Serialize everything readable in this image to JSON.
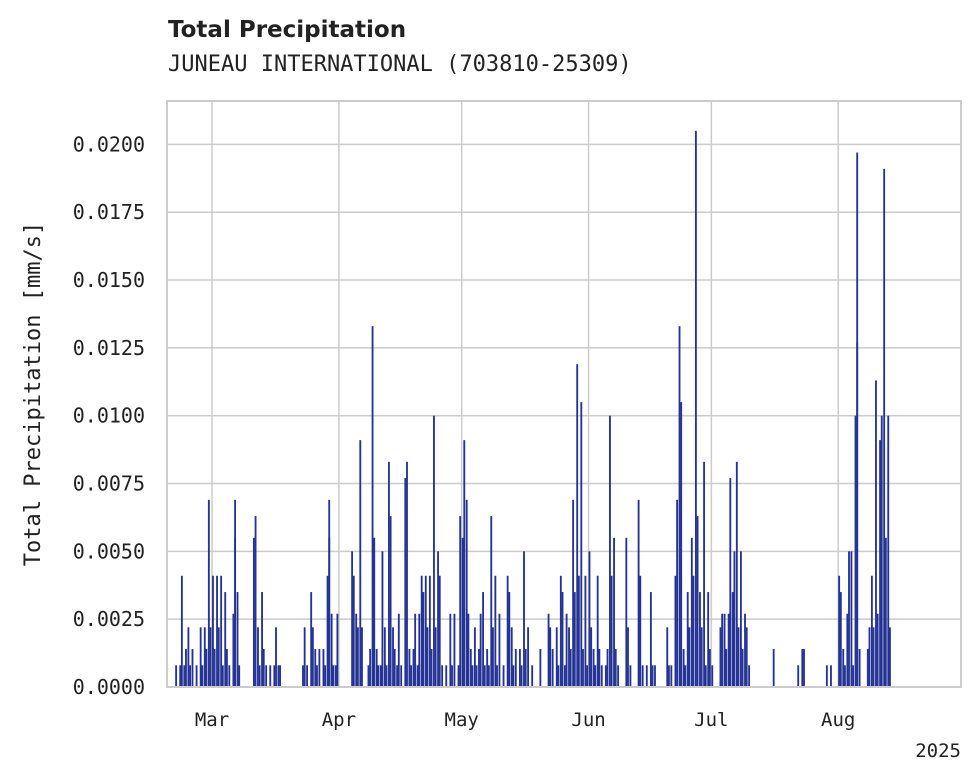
{
  "chart_data": {
    "type": "bar",
    "title": "Total Precipitation",
    "subtitle": "JUNEAU INTERNATIONAL (703810-25309)",
    "ylabel": "Total Precipitation [mm/s]",
    "xlabel": "",
    "year_label": "2025",
    "ylim": [
      0,
      0.0216
    ],
    "xlim": [
      "2025-02-18",
      "2025-08-31"
    ],
    "yticks": [
      "0.0000",
      "0.0025",
      "0.0050",
      "0.0075",
      "0.0100",
      "0.0125",
      "0.0150",
      "0.0175",
      "0.0200"
    ],
    "xticks": [
      {
        "date": "2025-03-01",
        "label": "Mar"
      },
      {
        "date": "2025-04-01",
        "label": "Apr"
      },
      {
        "date": "2025-05-01",
        "label": "May"
      },
      {
        "date": "2025-06-01",
        "label": "Jun"
      },
      {
        "date": "2025-07-01",
        "label": "Jul"
      },
      {
        "date": "2025-08-01",
        "label": "Aug"
      }
    ],
    "grid": true,
    "bar_color": "#253494",
    "series": [
      {
        "points": [
          [
            "2025-02-20",
            0.0008
          ],
          [
            "2025-02-21",
            0.0008
          ],
          [
            "2025-02-21",
            0.0041
          ],
          [
            "2025-02-22",
            0.0008
          ],
          [
            "2025-02-22",
            0.0014
          ],
          [
            "2025-02-23",
            0.0022
          ],
          [
            "2025-02-23",
            0.0008
          ],
          [
            "2025-02-24",
            0.0014
          ],
          [
            "2025-02-25",
            0.0008
          ],
          [
            "2025-02-26",
            0.0022
          ],
          [
            "2025-02-26",
            0.0008
          ],
          [
            "2025-02-27",
            0.0022
          ],
          [
            "2025-02-27",
            0.0014
          ],
          [
            "2025-02-28",
            0.0069
          ],
          [
            "2025-02-28",
            0.0022
          ],
          [
            "2025-03-01",
            0.0041
          ],
          [
            "2025-03-01",
            0.0014
          ],
          [
            "2025-03-02",
            0.0041
          ],
          [
            "2025-03-02",
            0.0022
          ],
          [
            "2025-03-03",
            0.0041
          ],
          [
            "2025-03-03",
            0.0008
          ],
          [
            "2025-03-04",
            0.0035
          ],
          [
            "2025-03-04",
            0.0014
          ],
          [
            "2025-03-05",
            0.0008
          ],
          [
            "2025-03-06",
            0.0027
          ],
          [
            "2025-03-06",
            0.0069
          ],
          [
            "2025-03-06",
            0.0055
          ],
          [
            "2025-03-07",
            0.0035
          ],
          [
            "2025-03-07",
            0.0008
          ],
          [
            "2025-03-11",
            0.0055
          ],
          [
            "2025-03-11",
            0.0063
          ],
          [
            "2025-03-12",
            0.0022
          ],
          [
            "2025-03-12",
            0.0008
          ],
          [
            "2025-03-13",
            0.0035
          ],
          [
            "2025-03-13",
            0.0014
          ],
          [
            "2025-03-14",
            0.0008
          ],
          [
            "2025-03-15",
            0.0008
          ],
          [
            "2025-03-16",
            0.0008
          ],
          [
            "2025-03-16",
            0.0022
          ],
          [
            "2025-03-17",
            0.0008
          ],
          [
            "2025-03-17",
            0.0008
          ],
          [
            "2025-03-23",
            0.0008
          ],
          [
            "2025-03-23",
            0.0022
          ],
          [
            "2025-03-24",
            0.0008
          ],
          [
            "2025-03-25",
            0.0035
          ],
          [
            "2025-03-25",
            0.0022
          ],
          [
            "2025-03-26",
            0.0014
          ],
          [
            "2025-03-26",
            0.0008
          ],
          [
            "2025-03-27",
            0.0014
          ],
          [
            "2025-03-28",
            0.0014
          ],
          [
            "2025-03-28",
            0.0008
          ],
          [
            "2025-03-29",
            0.0041
          ],
          [
            "2025-03-29",
            0.0055
          ],
          [
            "2025-03-29",
            0.0069
          ],
          [
            "2025-03-30",
            0.0027
          ],
          [
            "2025-03-30",
            0.0008
          ],
          [
            "2025-03-31",
            0.0008
          ],
          [
            "2025-03-31",
            0.0027
          ],
          [
            "2025-04-04",
            0.005
          ],
          [
            "2025-04-04",
            0.0041
          ],
          [
            "2025-04-05",
            0.0027
          ],
          [
            "2025-04-05",
            0.0022
          ],
          [
            "2025-04-06",
            0.0091
          ],
          [
            "2025-04-06",
            0.0022
          ],
          [
            "2025-04-08",
            0.0008
          ],
          [
            "2025-04-08",
            0.0014
          ],
          [
            "2025-04-09",
            0.0133
          ],
          [
            "2025-04-09",
            0.0055
          ],
          [
            "2025-04-10",
            0.0014
          ],
          [
            "2025-04-10",
            0.0008
          ],
          [
            "2025-04-11",
            0.0008
          ],
          [
            "2025-04-11",
            0.005
          ],
          [
            "2025-04-12",
            0.0022
          ],
          [
            "2025-04-12",
            0.0008
          ],
          [
            "2025-04-13",
            0.0083
          ],
          [
            "2025-04-13",
            0.0063
          ],
          [
            "2025-04-14",
            0.0022
          ],
          [
            "2025-04-14",
            0.0014
          ],
          [
            "2025-04-15",
            0.0008
          ],
          [
            "2025-04-15",
            0.0027
          ],
          [
            "2025-04-16",
            0.0008
          ],
          [
            "2025-04-17",
            0.0077
          ],
          [
            "2025-04-17",
            0.0083
          ],
          [
            "2025-04-18",
            0.0014
          ],
          [
            "2025-04-18",
            0.0008
          ],
          [
            "2025-04-19",
            0.0014
          ],
          [
            "2025-04-19",
            0.0027
          ],
          [
            "2025-04-20",
            0.0008
          ],
          [
            "2025-04-20",
            0.0027
          ],
          [
            "2025-04-21",
            0.0041
          ],
          [
            "2025-04-21",
            0.0035
          ],
          [
            "2025-04-22",
            0.0041
          ],
          [
            "2025-04-22",
            0.0022
          ],
          [
            "2025-04-23",
            0.0041
          ],
          [
            "2025-04-23",
            0.0014
          ],
          [
            "2025-04-24",
            0.01
          ],
          [
            "2025-04-24",
            0.0022
          ],
          [
            "2025-04-25",
            0.005
          ],
          [
            "2025-04-25",
            0.0041
          ],
          [
            "2025-04-26",
            0.0008
          ],
          [
            "2025-04-27",
            0.0008
          ],
          [
            "2025-04-28",
            0.0027
          ],
          [
            "2025-04-28",
            0.0008
          ],
          [
            "2025-04-29",
            0.0027
          ],
          [
            "2025-04-30",
            0.0008
          ],
          [
            "2025-04-30",
            0.0063
          ],
          [
            "2025-05-01",
            0.0055
          ],
          [
            "2025-05-01",
            0.0091
          ],
          [
            "2025-05-02",
            0.0069
          ],
          [
            "2025-05-02",
            0.0027
          ],
          [
            "2025-05-03",
            0.0014
          ],
          [
            "2025-05-03",
            0.0008
          ],
          [
            "2025-05-04",
            0.0022
          ],
          [
            "2025-05-04",
            0.0008
          ],
          [
            "2025-05-05",
            0.0014
          ],
          [
            "2025-05-05",
            0.0027
          ],
          [
            "2025-05-06",
            0.0035
          ],
          [
            "2025-05-06",
            0.0008
          ],
          [
            "2025-05-07",
            0.0014
          ],
          [
            "2025-05-07",
            0.0008
          ],
          [
            "2025-05-08",
            0.0063
          ],
          [
            "2025-05-08",
            0.0022
          ],
          [
            "2025-05-09",
            0.0041
          ],
          [
            "2025-05-09",
            0.0008
          ],
          [
            "2025-05-10",
            0.0027
          ],
          [
            "2025-05-11",
            0.0008
          ],
          [
            "2025-05-12",
            0.0041
          ],
          [
            "2025-05-12",
            0.0035
          ],
          [
            "2025-05-13",
            0.0022
          ],
          [
            "2025-05-13",
            0.0008
          ],
          [
            "2025-05-14",
            0.0014
          ],
          [
            "2025-05-15",
            0.0014
          ],
          [
            "2025-05-15",
            0.0008
          ],
          [
            "2025-05-16",
            0.005
          ],
          [
            "2025-05-16",
            0.0014
          ],
          [
            "2025-05-17",
            0.0022
          ],
          [
            "2025-05-18",
            0.0008
          ],
          [
            "2025-05-20",
            0.0014
          ],
          [
            "2025-05-22",
            0.0027
          ],
          [
            "2025-05-22",
            0.0022
          ],
          [
            "2025-05-23",
            0.0014
          ],
          [
            "2025-05-24",
            0.0022
          ],
          [
            "2025-05-24",
            0.0008
          ],
          [
            "2025-05-25",
            0.0041
          ],
          [
            "2025-05-25",
            0.0035
          ],
          [
            "2025-05-26",
            0.0008
          ],
          [
            "2025-05-26",
            0.0027
          ],
          [
            "2025-05-27",
            0.0022
          ],
          [
            "2025-05-27",
            0.0014
          ],
          [
            "2025-05-28",
            0.0069
          ],
          [
            "2025-05-28",
            0.0035
          ],
          [
            "2025-05-29",
            0.0119
          ],
          [
            "2025-05-29",
            0.0041
          ],
          [
            "2025-05-30",
            0.0105
          ],
          [
            "2025-05-30",
            0.0014
          ],
          [
            "2025-05-31",
            0.0041
          ],
          [
            "2025-05-31",
            0.0008
          ],
          [
            "2025-06-01",
            0.005
          ],
          [
            "2025-06-01",
            0.0022
          ],
          [
            "2025-06-02",
            0.0014
          ],
          [
            "2025-06-02",
            0.0008
          ],
          [
            "2025-06-03",
            0.0041
          ],
          [
            "2025-06-03",
            0.0014
          ],
          [
            "2025-06-04",
            0.0008
          ],
          [
            "2025-06-05",
            0.0008
          ],
          [
            "2025-06-05",
            0.0014
          ],
          [
            "2025-06-06",
            0.01
          ],
          [
            "2025-06-06",
            0.0041
          ],
          [
            "2025-06-07",
            0.0055
          ],
          [
            "2025-06-07",
            0.0014
          ],
          [
            "2025-06-08",
            0.0008
          ],
          [
            "2025-06-10",
            0.0055
          ],
          [
            "2025-06-10",
            0.0022
          ],
          [
            "2025-06-11",
            0.0008
          ],
          [
            "2025-06-13",
            0.0069
          ],
          [
            "2025-06-13",
            0.0041
          ],
          [
            "2025-06-14",
            0.0008
          ],
          [
            "2025-06-15",
            0.0008
          ],
          [
            "2025-06-16",
            0.0035
          ],
          [
            "2025-06-16",
            0.0008
          ],
          [
            "2025-06-17",
            0.0008
          ],
          [
            "2025-06-20",
            0.0022
          ],
          [
            "2025-06-20",
            0.0008
          ],
          [
            "2025-06-21",
            0.0008
          ],
          [
            "2025-06-22",
            0.0041
          ],
          [
            "2025-06-22",
            0.0069
          ],
          [
            "2025-06-23",
            0.0133
          ],
          [
            "2025-06-23",
            0.0105
          ],
          [
            "2025-06-24",
            0.0014
          ],
          [
            "2025-06-24",
            0.0008
          ],
          [
            "2025-06-25",
            0.0035
          ],
          [
            "2025-06-25",
            0.0022
          ],
          [
            "2025-06-26",
            0.0055
          ],
          [
            "2025-06-26",
            0.0041
          ],
          [
            "2025-06-27",
            0.0205
          ],
          [
            "2025-06-27",
            0.0063
          ],
          [
            "2025-06-28",
            0.0035
          ],
          [
            "2025-06-28",
            0.0022
          ],
          [
            "2025-06-29",
            0.0083
          ],
          [
            "2025-06-29",
            0.0008
          ],
          [
            "2025-06-30",
            0.0035
          ],
          [
            "2025-06-30",
            0.0014
          ],
          [
            "2025-07-01",
            0.0008
          ],
          [
            "2025-07-03",
            0.0022
          ],
          [
            "2025-07-03",
            0.0027
          ],
          [
            "2025-07-04",
            0.0027
          ],
          [
            "2025-07-04",
            0.0014
          ],
          [
            "2025-07-05",
            0.0027
          ],
          [
            "2025-07-05",
            0.0077
          ],
          [
            "2025-07-06",
            0.0035
          ],
          [
            "2025-07-06",
            0.005
          ],
          [
            "2025-07-07",
            0.0083
          ],
          [
            "2025-07-07",
            0.0022
          ],
          [
            "2025-07-08",
            0.005
          ],
          [
            "2025-07-08",
            0.0014
          ],
          [
            "2025-07-09",
            0.0027
          ],
          [
            "2025-07-09",
            0.0022
          ],
          [
            "2025-07-10",
            0.0008
          ],
          [
            "2025-07-16",
            0.0014
          ],
          [
            "2025-07-22",
            0.0008
          ],
          [
            "2025-07-23",
            0.0014
          ],
          [
            "2025-07-23",
            0.0014
          ],
          [
            "2025-07-29",
            0.0008
          ],
          [
            "2025-07-30",
            0.0008
          ],
          [
            "2025-08-01",
            0.0041
          ],
          [
            "2025-08-01",
            0.0035
          ],
          [
            "2025-08-02",
            0.0014
          ],
          [
            "2025-08-02",
            0.0008
          ],
          [
            "2025-08-03",
            0.0027
          ],
          [
            "2025-08-03",
            0.005
          ],
          [
            "2025-08-04",
            0.005
          ],
          [
            "2025-08-04",
            0.0008
          ],
          [
            "2025-08-05",
            0.01
          ],
          [
            "2025-08-05",
            0.0197
          ],
          [
            "2025-08-05",
            0.0127
          ],
          [
            "2025-08-06",
            0.0014
          ],
          [
            "2025-08-08",
            0.0014
          ],
          [
            "2025-08-08",
            0.0022
          ],
          [
            "2025-08-09",
            0.0041
          ],
          [
            "2025-08-09",
            0.0022
          ],
          [
            "2025-08-10",
            0.0113
          ],
          [
            "2025-08-10",
            0.0027
          ],
          [
            "2025-08-11",
            0.0091
          ],
          [
            "2025-08-11",
            0.01
          ],
          [
            "2025-08-12",
            0.0191
          ],
          [
            "2025-08-12",
            0.0055
          ],
          [
            "2025-08-13",
            0.01
          ],
          [
            "2025-08-13",
            0.0022
          ]
        ]
      }
    ]
  }
}
